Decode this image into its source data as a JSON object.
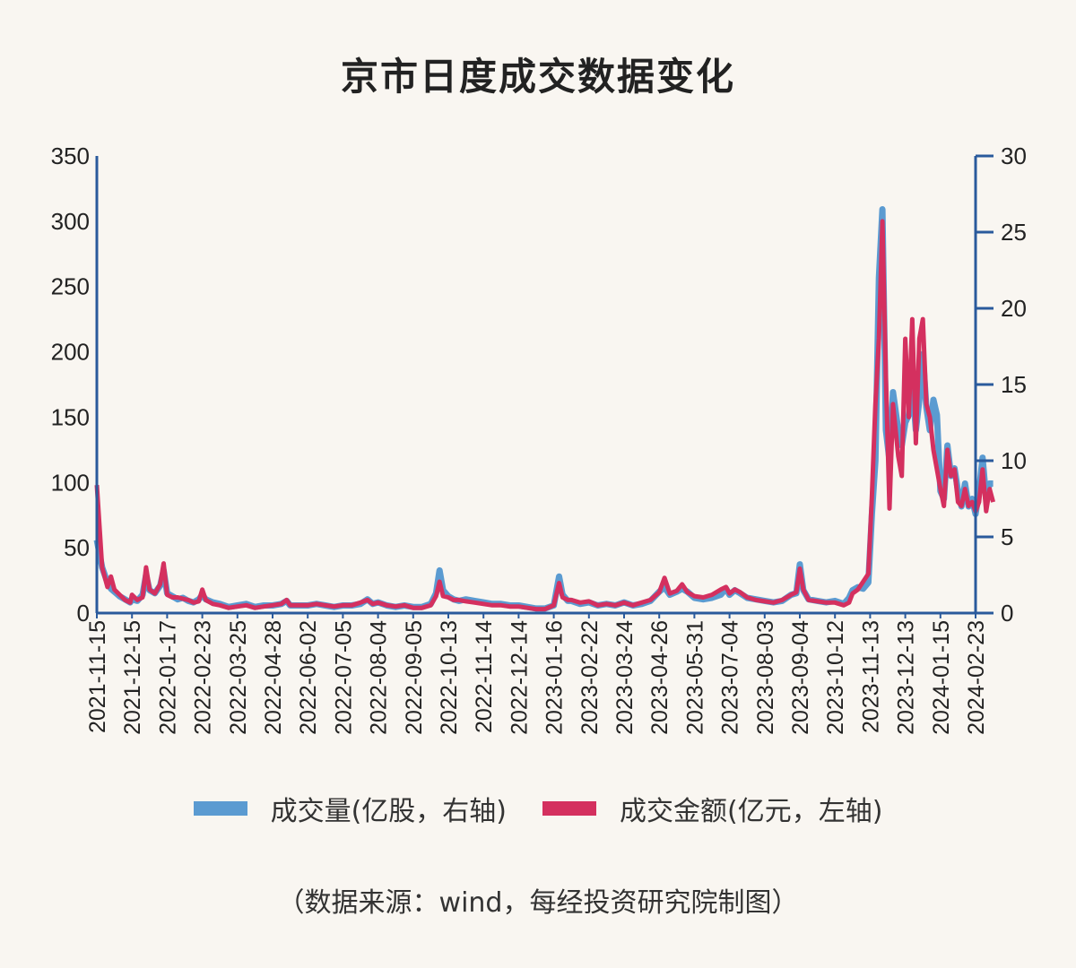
{
  "chart_data": {
    "type": "line",
    "title": "京市日度成交数据变化",
    "source_note": "（数据来源：wind，每经投资研究院制图）",
    "y_left": {
      "ticks": [
        "0",
        "50",
        "100",
        "150",
        "200",
        "250",
        "300",
        "350"
      ],
      "range": [
        0,
        350
      ]
    },
    "y_right": {
      "ticks": [
        "0",
        "5",
        "10",
        "15",
        "20",
        "25",
        "30"
      ],
      "range": [
        0,
        30
      ]
    },
    "x_tick_labels": [
      "2021-11-15",
      "2021-12-15",
      "2022-01-17",
      "2022-02-23",
      "2022-03-25",
      "2022-04-28",
      "2022-06-02",
      "2022-07-05",
      "2022-08-04",
      "2022-09-05",
      "2022-10-13",
      "2022-11-14",
      "2022-12-14",
      "2023-01-16",
      "2023-02-22",
      "2023-03-24",
      "2023-04-26",
      "2023-05-31",
      "2023-07-04",
      "2023-08-03",
      "2023-09-04",
      "2023-10-12",
      "2023-11-13",
      "2023-12-13",
      "2024-01-15",
      "2024-02-23"
    ],
    "series": [
      {
        "name": "成交量(亿股，右轴)",
        "axis": "right",
        "color": "#5b9bd1",
        "points": [
          [
            0,
            4.8
          ],
          [
            0.3,
            3
          ],
          [
            0.6,
            2
          ],
          [
            0.8,
            1.6
          ],
          [
            1.0,
            1.4
          ],
          [
            1.3,
            1.1
          ],
          [
            1.6,
            0.9
          ],
          [
            1.9,
            0.7
          ],
          [
            2.0,
            0.9
          ],
          [
            2.3,
            0.8
          ],
          [
            2.6,
            1.2
          ],
          [
            2.8,
            2.5
          ],
          [
            3.0,
            1.5
          ],
          [
            3.3,
            1.3
          ],
          [
            3.6,
            1.8
          ],
          [
            3.8,
            2.8
          ],
          [
            4.0,
            1.3
          ],
          [
            4.3,
            1.1
          ],
          [
            4.6,
            0.9
          ],
          [
            4.9,
            1.0
          ],
          [
            5.2,
            0.8
          ],
          [
            5.5,
            0.7
          ],
          [
            5.8,
            0.9
          ],
          [
            6.0,
            1.2
          ],
          [
            6.2,
            0.9
          ],
          [
            6.6,
            0.7
          ],
          [
            7.0,
            0.6
          ],
          [
            7.5,
            0.4
          ],
          [
            8.0,
            0.5
          ],
          [
            8.5,
            0.6
          ],
          [
            9.0,
            0.4
          ],
          [
            9.5,
            0.5
          ],
          [
            10.0,
            0.5
          ],
          [
            10.5,
            0.6
          ],
          [
            10.8,
            0.8
          ],
          [
            11.0,
            0.5
          ],
          [
            11.5,
            0.5
          ],
          [
            12.0,
            0.5
          ],
          [
            12.5,
            0.6
          ],
          [
            13.0,
            0.5
          ],
          [
            13.5,
            0.4
          ],
          [
            14.0,
            0.5
          ],
          [
            14.5,
            0.5
          ],
          [
            15.0,
            0.6
          ],
          [
            15.4,
            0.9
          ],
          [
            15.7,
            0.6
          ],
          [
            16.0,
            0.7
          ],
          [
            16.5,
            0.5
          ],
          [
            17.0,
            0.4
          ],
          [
            17.5,
            0.5
          ],
          [
            18.0,
            0.4
          ],
          [
            18.5,
            0.4
          ],
          [
            19.0,
            0.6
          ],
          [
            19.3,
            1.3
          ],
          [
            19.5,
            2.8
          ],
          [
            19.7,
            1.5
          ],
          [
            20.0,
            1.1
          ],
          [
            20.3,
            0.9
          ],
          [
            20.6,
            0.8
          ],
          [
            21.0,
            0.9
          ],
          [
            21.5,
            0.8
          ],
          [
            22.0,
            0.7
          ],
          [
            22.5,
            0.6
          ],
          [
            23.0,
            0.6
          ],
          [
            23.5,
            0.5
          ],
          [
            24.0,
            0.5
          ],
          [
            24.5,
            0.4
          ],
          [
            25.0,
            0.3
          ],
          [
            25.5,
            0.3
          ],
          [
            26.0,
            0.5
          ],
          [
            26.3,
            2.4
          ],
          [
            26.5,
            1.2
          ],
          [
            26.8,
            0.8
          ],
          [
            27.0,
            0.8
          ],
          [
            27.5,
            0.6
          ],
          [
            28.0,
            0.7
          ],
          [
            28.5,
            0.5
          ],
          [
            29.0,
            0.6
          ],
          [
            29.5,
            0.5
          ],
          [
            30.0,
            0.7
          ],
          [
            30.5,
            0.5
          ],
          [
            31.0,
            0.6
          ],
          [
            31.5,
            0.8
          ],
          [
            32.0,
            1.4
          ],
          [
            32.3,
            1.7
          ],
          [
            32.6,
            1.2
          ],
          [
            33.0,
            1.4
          ],
          [
            33.3,
            1.6
          ],
          [
            33.6,
            1.4
          ],
          [
            34.0,
            1.0
          ],
          [
            34.5,
            0.9
          ],
          [
            35.0,
            1.0
          ],
          [
            35.5,
            1.2
          ],
          [
            35.8,
            1.6
          ],
          [
            36.0,
            1.2
          ],
          [
            36.3,
            1.5
          ],
          [
            36.6,
            1.3
          ],
          [
            37.0,
            1.0
          ],
          [
            37.5,
            0.9
          ],
          [
            38.0,
            0.8
          ],
          [
            38.5,
            0.7
          ],
          [
            39.0,
            0.8
          ],
          [
            39.5,
            1.2
          ],
          [
            39.8,
            1.3
          ],
          [
            40.0,
            3.2
          ],
          [
            40.2,
            1.5
          ],
          [
            40.5,
            0.9
          ],
          [
            41.0,
            0.8
          ],
          [
            41.5,
            0.7
          ],
          [
            42.0,
            0.8
          ],
          [
            42.5,
            0.6
          ],
          [
            42.8,
            1.0
          ],
          [
            43.0,
            1.5
          ],
          [
            43.3,
            1.7
          ],
          [
            43.6,
            1.6
          ],
          [
            43.9,
            2.0
          ],
          [
            44.1,
            6.5
          ],
          [
            44.3,
            10
          ],
          [
            44.5,
            22
          ],
          [
            44.7,
            26.5
          ],
          [
            44.9,
            12
          ],
          [
            45.1,
            10
          ],
          [
            45.3,
            14.5
          ],
          [
            45.6,
            12
          ],
          [
            45.8,
            11
          ],
          [
            46.0,
            12.5
          ],
          [
            46.2,
            13
          ],
          [
            46.4,
            15
          ],
          [
            46.6,
            12
          ],
          [
            46.8,
            14
          ],
          [
            47.0,
            17
          ],
          [
            47.2,
            13.5
          ],
          [
            47.4,
            12
          ],
          [
            47.6,
            14
          ],
          [
            47.8,
            13
          ],
          [
            48.0,
            8
          ],
          [
            48.2,
            7.5
          ],
          [
            48.4,
            11
          ],
          [
            48.6,
            9
          ],
          [
            48.8,
            9.5
          ],
          [
            49.0,
            8
          ],
          [
            49.2,
            7
          ],
          [
            49.4,
            8.5
          ],
          [
            49.6,
            7
          ],
          [
            49.8,
            7.5
          ],
          [
            50.0,
            6.5
          ],
          [
            50.2,
            8
          ],
          [
            50.4,
            10.2
          ],
          [
            50.6,
            7.5
          ],
          [
            50.8,
            8.5
          ],
          [
            51,
            8.5
          ]
        ]
      },
      {
        "name": "成交金额(亿元，左轴)",
        "axis": "left",
        "color": "#d4305f",
        "points": [
          [
            0,
            98
          ],
          [
            0.3,
            35
          ],
          [
            0.6,
            20
          ],
          [
            0.8,
            28
          ],
          [
            1.0,
            18
          ],
          [
            1.3,
            14
          ],
          [
            1.6,
            10
          ],
          [
            1.9,
            8
          ],
          [
            2.0,
            14
          ],
          [
            2.3,
            10
          ],
          [
            2.6,
            12
          ],
          [
            2.8,
            35
          ],
          [
            3.0,
            18
          ],
          [
            3.3,
            15
          ],
          [
            3.6,
            22
          ],
          [
            3.8,
            38
          ],
          [
            4.0,
            14
          ],
          [
            4.3,
            12
          ],
          [
            4.6,
            12
          ],
          [
            4.9,
            11
          ],
          [
            5.2,
            10
          ],
          [
            5.5,
            8
          ],
          [
            5.8,
            9
          ],
          [
            6.0,
            18
          ],
          [
            6.2,
            10
          ],
          [
            6.6,
            7
          ],
          [
            7.0,
            6
          ],
          [
            7.5,
            4
          ],
          [
            8.0,
            5
          ],
          [
            8.5,
            6
          ],
          [
            9.0,
            4
          ],
          [
            9.5,
            5
          ],
          [
            10.0,
            6
          ],
          [
            10.5,
            7
          ],
          [
            10.8,
            10
          ],
          [
            11.0,
            6
          ],
          [
            11.5,
            6
          ],
          [
            12.0,
            6
          ],
          [
            12.5,
            7
          ],
          [
            13.0,
            6
          ],
          [
            13.5,
            5
          ],
          [
            14.0,
            6
          ],
          [
            14.5,
            6
          ],
          [
            15.0,
            8
          ],
          [
            15.4,
            10
          ],
          [
            15.7,
            7
          ],
          [
            16.0,
            8
          ],
          [
            16.5,
            6
          ],
          [
            17.0,
            5
          ],
          [
            17.5,
            6
          ],
          [
            18.0,
            4
          ],
          [
            18.5,
            4
          ],
          [
            19.0,
            6
          ],
          [
            19.3,
            13
          ],
          [
            19.5,
            24
          ],
          [
            19.7,
            13
          ],
          [
            20.0,
            12
          ],
          [
            20.3,
            10
          ],
          [
            20.6,
            10
          ],
          [
            21.0,
            9
          ],
          [
            21.5,
            8
          ],
          [
            22.0,
            7
          ],
          [
            22.5,
            6
          ],
          [
            23.0,
            6
          ],
          [
            23.5,
            5
          ],
          [
            24.0,
            5
          ],
          [
            24.5,
            4
          ],
          [
            25.0,
            3
          ],
          [
            25.5,
            3
          ],
          [
            26.0,
            6
          ],
          [
            26.3,
            23
          ],
          [
            26.5,
            12
          ],
          [
            26.8,
            10
          ],
          [
            27.0,
            10
          ],
          [
            27.5,
            8
          ],
          [
            28.0,
            9
          ],
          [
            28.5,
            6
          ],
          [
            29.0,
            7
          ],
          [
            29.5,
            6
          ],
          [
            30.0,
            8
          ],
          [
            30.5,
            6
          ],
          [
            31.0,
            8
          ],
          [
            31.5,
            10
          ],
          [
            32.0,
            16
          ],
          [
            32.3,
            27
          ],
          [
            32.6,
            15
          ],
          [
            33.0,
            17
          ],
          [
            33.3,
            22
          ],
          [
            33.6,
            16
          ],
          [
            34.0,
            13
          ],
          [
            34.5,
            12
          ],
          [
            35.0,
            14
          ],
          [
            35.5,
            18
          ],
          [
            35.8,
            20
          ],
          [
            36.0,
            15
          ],
          [
            36.3,
            18
          ],
          [
            36.6,
            16
          ],
          [
            37.0,
            12
          ],
          [
            37.5,
            10
          ],
          [
            38.0,
            9
          ],
          [
            38.5,
            8
          ],
          [
            39.0,
            10
          ],
          [
            39.5,
            14
          ],
          [
            39.8,
            16
          ],
          [
            40.0,
            34
          ],
          [
            40.2,
            18
          ],
          [
            40.5,
            10
          ],
          [
            41.0,
            9
          ],
          [
            41.5,
            8
          ],
          [
            42.0,
            8
          ],
          [
            42.5,
            6
          ],
          [
            42.8,
            8
          ],
          [
            43.0,
            15
          ],
          [
            43.3,
            18
          ],
          [
            43.6,
            24
          ],
          [
            43.9,
            30
          ],
          [
            44.1,
            90
          ],
          [
            44.3,
            160
          ],
          [
            44.5,
            210
          ],
          [
            44.7,
            300
          ],
          [
            44.9,
            180
          ],
          [
            45.1,
            80
          ],
          [
            45.3,
            160
          ],
          [
            45.6,
            120
          ],
          [
            45.8,
            105
          ],
          [
            46.0,
            210
          ],
          [
            46.2,
            150
          ],
          [
            46.4,
            225
          ],
          [
            46.6,
            130
          ],
          [
            46.8,
            210
          ],
          [
            47.0,
            225
          ],
          [
            47.2,
            160
          ],
          [
            47.4,
            150
          ],
          [
            47.6,
            125
          ],
          [
            47.8,
            110
          ],
          [
            48.0,
            95
          ],
          [
            48.2,
            82
          ],
          [
            48.4,
            125
          ],
          [
            48.6,
            105
          ],
          [
            48.8,
            110
          ],
          [
            49.0,
            85
          ],
          [
            49.2,
            82
          ],
          [
            49.4,
            95
          ],
          [
            49.6,
            82
          ],
          [
            49.8,
            85
          ],
          [
            50.0,
            78
          ],
          [
            50.2,
            85
          ],
          [
            50.4,
            110
          ],
          [
            50.6,
            78
          ],
          [
            50.8,
            95
          ],
          [
            51,
            85
          ]
        ]
      }
    ]
  }
}
